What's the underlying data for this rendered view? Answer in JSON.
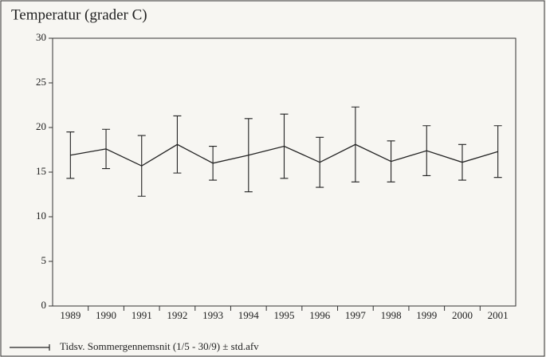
{
  "chart_data": {
    "type": "line",
    "title": "Temperatur (grader C)",
    "categories": [
      "1989",
      "1990",
      "1991",
      "1992",
      "1993",
      "1994",
      "1995",
      "1996",
      "1997",
      "1998",
      "1999",
      "2000",
      "2001"
    ],
    "series": [
      {
        "name": "Tidsv. Sommergennemsnit (1/5 - 30/9) ± std.afv",
        "color": "#222222",
        "values": [
          16.9,
          17.6,
          15.7,
          18.1,
          16.0,
          16.9,
          17.9,
          16.1,
          18.1,
          16.2,
          17.4,
          16.1,
          17.3
        ],
        "errors": [
          2.6,
          2.2,
          3.4,
          3.2,
          1.9,
          4.1,
          3.6,
          2.8,
          4.2,
          2.3,
          2.8,
          2.0,
          2.9
        ]
      }
    ],
    "ylim": [
      0,
      30
    ],
    "yticks": [
      0,
      5,
      10,
      15,
      20,
      25,
      30
    ],
    "grid": false,
    "legend": "bottom"
  }
}
